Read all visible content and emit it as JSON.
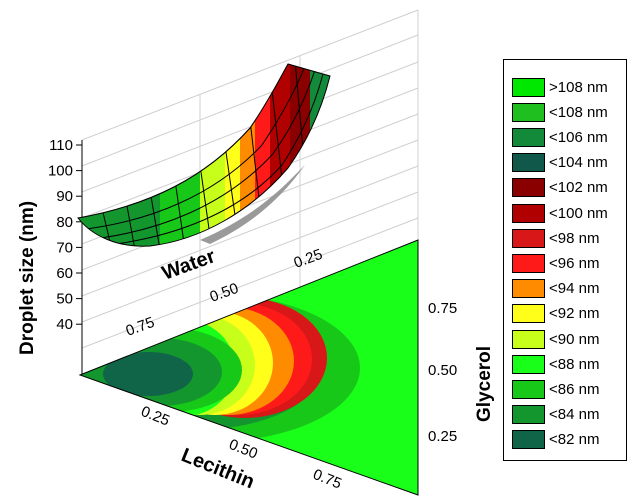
{
  "chart_data": {
    "type": "ternary_response_surface_3d",
    "ylabel": "Droplet size (nm)",
    "z_ticks": [
      "110",
      "100",
      "90",
      "80",
      "70",
      "60",
      "50",
      "40"
    ],
    "axes": [
      {
        "name": "Water",
        "ticks": [
          "0.75",
          "0.50",
          "0.25"
        ]
      },
      {
        "name": "Lecithin",
        "ticks": [
          "0.25",
          "0.50",
          "0.75"
        ]
      },
      {
        "name": "Glycerol",
        "ticks": [
          "0.75",
          "0.50",
          "0.25"
        ]
      }
    ],
    "legend": [
      {
        "label": ">108 nm",
        "color": "#00e800"
      },
      {
        "label": "<108 nm",
        "color": "#1fbf1f"
      },
      {
        "label": "<106 nm",
        "color": "#138a3a"
      },
      {
        "label": "<104 nm",
        "color": "#10584a"
      },
      {
        "label": "<102 nm",
        "color": "#8a0000"
      },
      {
        "label": "<100 nm",
        "color": "#b00000"
      },
      {
        "label": "<98 nm",
        "color": "#d81818"
      },
      {
        "label": "<96 nm",
        "color": "#ff1a1a"
      },
      {
        "label": "<94 nm",
        "color": "#ff8c00"
      },
      {
        "label": "<92 nm",
        "color": "#ffff1a"
      },
      {
        "label": "<90 nm",
        "color": "#c8ff1a"
      },
      {
        "label": "<88 nm",
        "color": "#1aff1a"
      },
      {
        "label": "<86 nm",
        "color": "#18c818"
      },
      {
        "label": "<84 nm",
        "color": "#14962e"
      },
      {
        "label": "<82 nm",
        "color": "#106448"
      }
    ]
  }
}
